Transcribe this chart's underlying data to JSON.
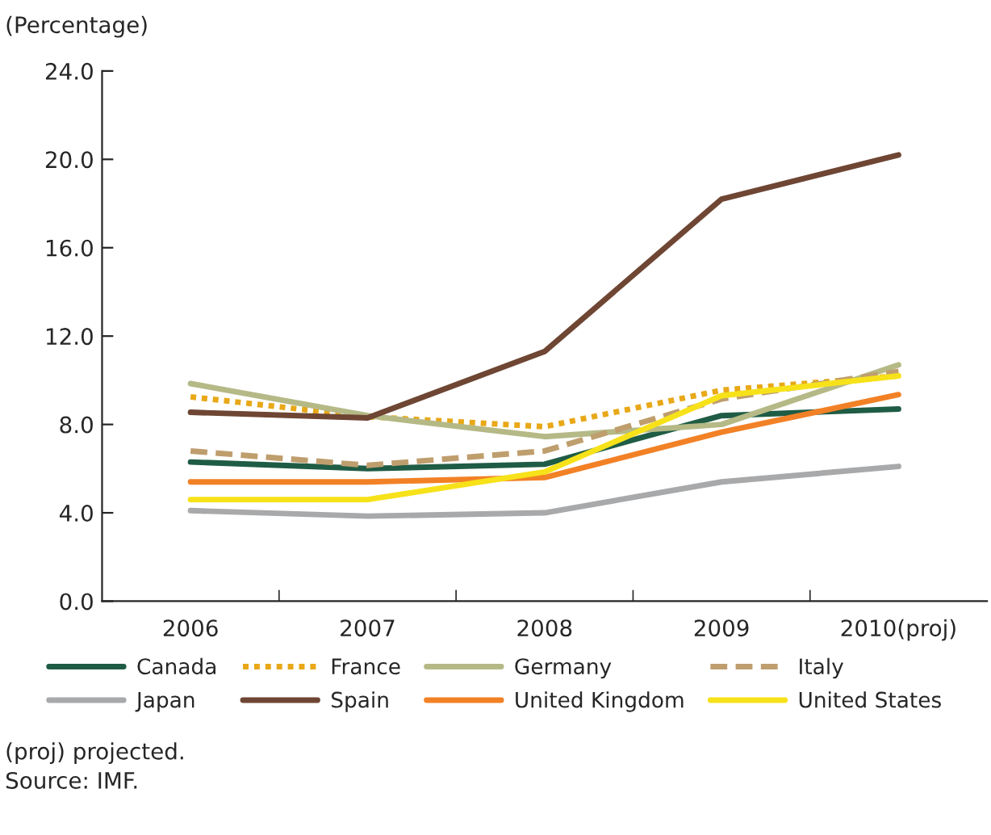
{
  "chart_data": {
    "type": "line",
    "ylabel": "(Percentage)",
    "categories": [
      "2006",
      "2007",
      "2008",
      "2009",
      "2010(proj)"
    ],
    "ylim": [
      0,
      24
    ],
    "yticks": [
      {
        "value": 0,
        "label": "0.0"
      },
      {
        "value": 4,
        "label": "4.0"
      },
      {
        "value": 8,
        "label": "8.0"
      },
      {
        "value": 12,
        "label": "12.0"
      },
      {
        "value": 16,
        "label": "16.0"
      },
      {
        "value": 20,
        "label": "20.0"
      },
      {
        "value": 24,
        "label": "24.0"
      }
    ],
    "grid": false,
    "legend": "bottom",
    "marker": "none",
    "series": [
      {
        "name": "Canada",
        "color": "#1f5c45",
        "line_style": "solid",
        "values": [
          6.3,
          6.0,
          6.2,
          8.4,
          8.7
        ]
      },
      {
        "name": "France",
        "color": "#e8a817",
        "line_style": "dotted",
        "values": [
          9.25,
          8.35,
          7.9,
          9.55,
          10.2
        ]
      },
      {
        "name": "Germany",
        "color": "#b5b986",
        "line_style": "solid",
        "values": [
          9.85,
          8.4,
          7.45,
          8.0,
          10.7
        ]
      },
      {
        "name": "Italy",
        "color": "#bf9e6e",
        "line_style": "dashed",
        "values": [
          6.8,
          6.15,
          6.8,
          9.15,
          10.4
        ]
      },
      {
        "name": "Japan",
        "color": "#a8a9ab",
        "line_style": "solid",
        "values": [
          4.1,
          3.85,
          4.0,
          5.4,
          6.1
        ]
      },
      {
        "name": "Spain",
        "color": "#6e4633",
        "line_style": "solid",
        "values": [
          8.55,
          8.3,
          11.3,
          18.2,
          20.2
        ]
      },
      {
        "name": "United Kingdom",
        "color": "#f28126",
        "line_style": "solid",
        "values": [
          5.4,
          5.4,
          5.6,
          7.65,
          9.35
        ]
      },
      {
        "name": "United States",
        "color": "#f7e21a",
        "line_style": "solid",
        "values": [
          4.6,
          4.6,
          5.85,
          9.3,
          10.2
        ]
      }
    ],
    "annotations": [
      "(proj) projected.",
      "Source: IMF."
    ]
  }
}
